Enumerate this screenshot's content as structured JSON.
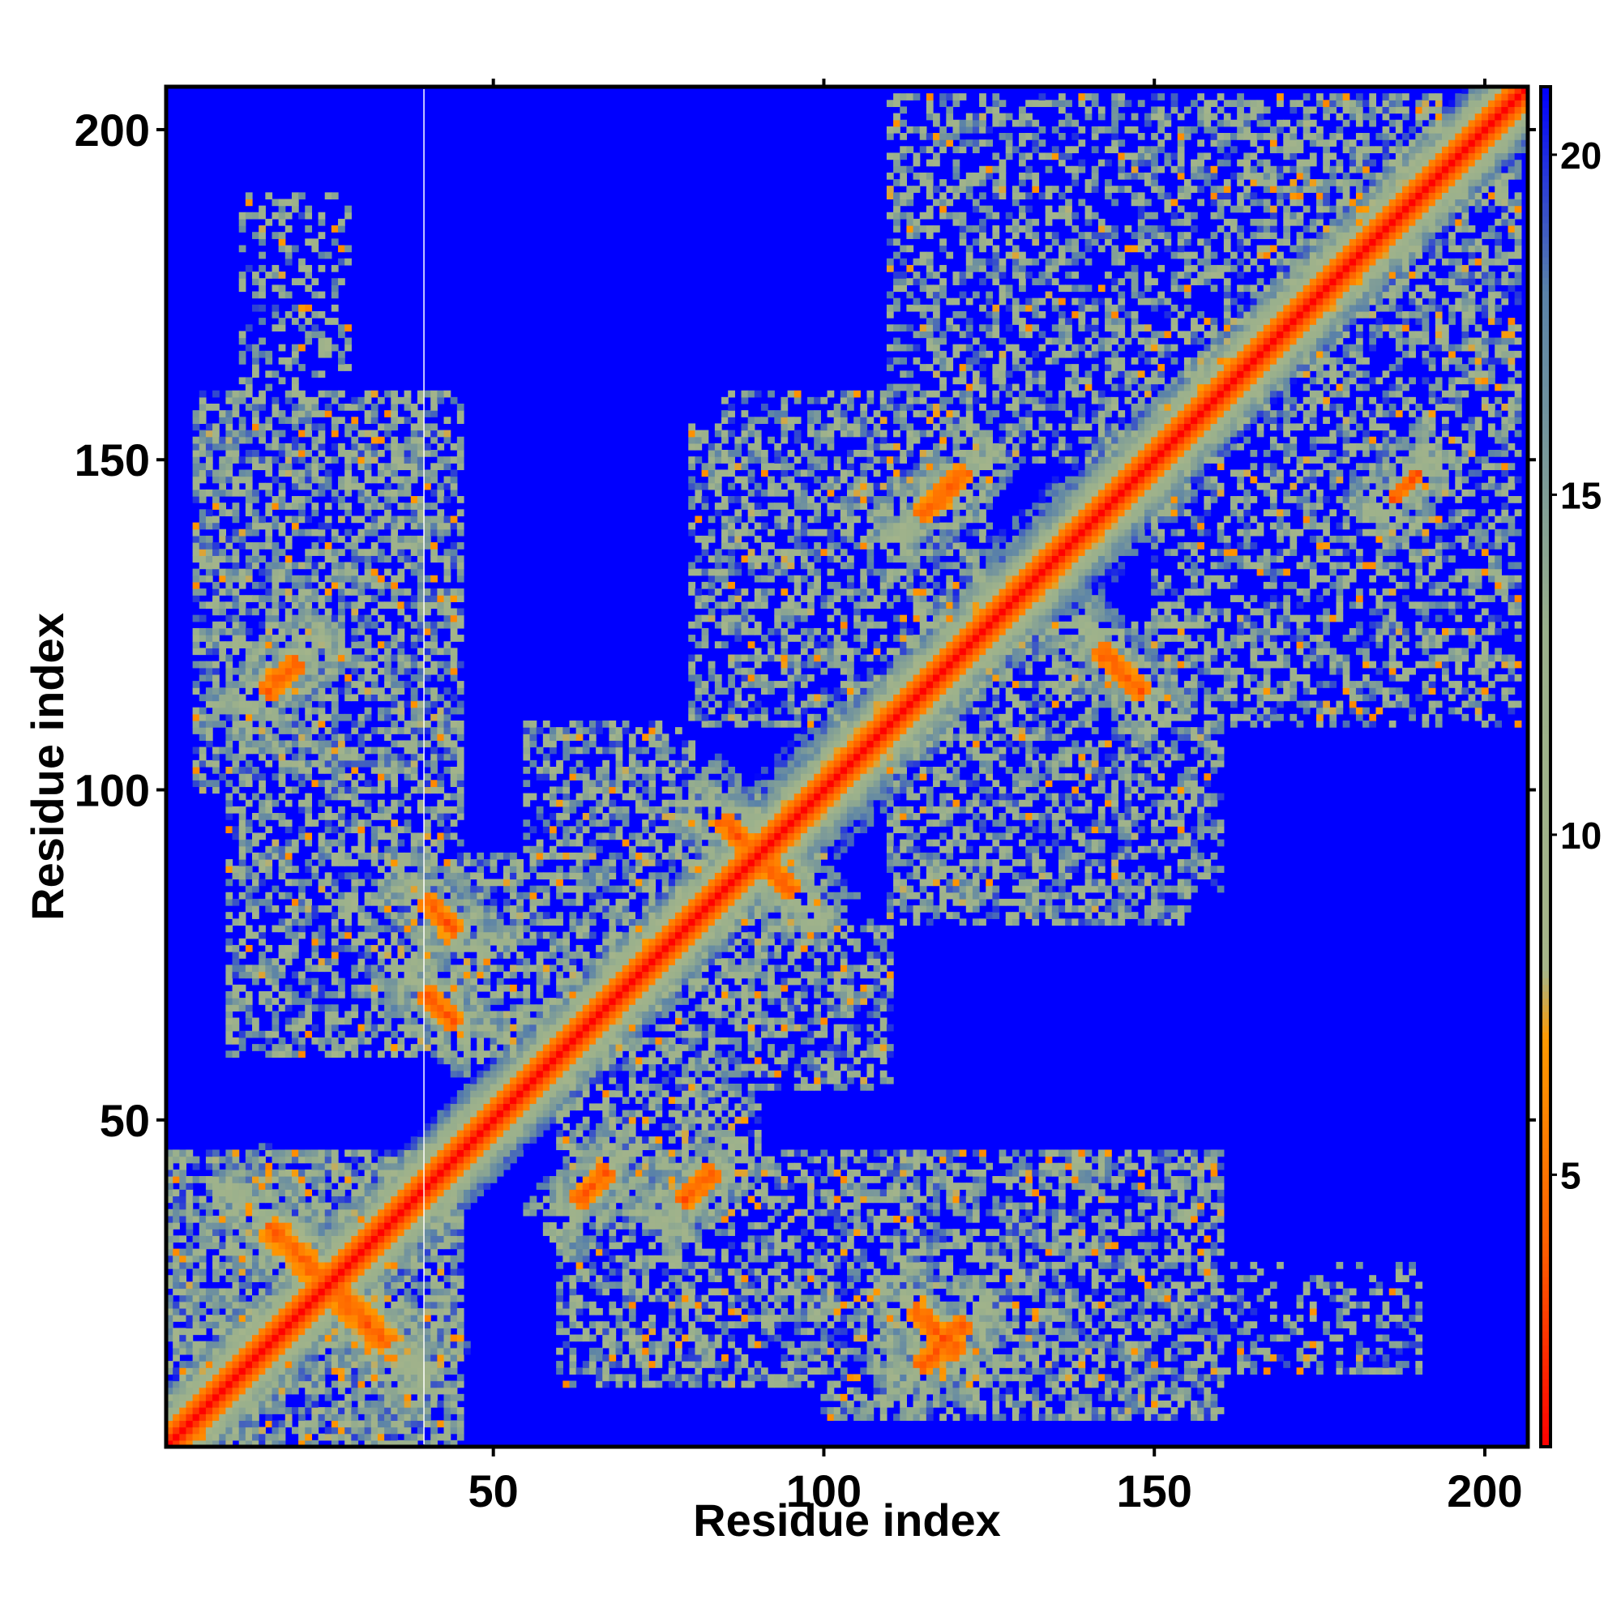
{
  "chart_data": {
    "type": "heatmap",
    "title": "",
    "xlabel": "Residue index",
    "ylabel": "Residue index",
    "xlim": [
      1,
      206
    ],
    "ylim": [
      1,
      206
    ],
    "x_ticks": [
      50,
      100,
      150,
      200
    ],
    "y_ticks": [
      50,
      100,
      150,
      200
    ],
    "x_tick_labels": [
      "50",
      "100",
      "150",
      "200"
    ],
    "y_tick_labels": [
      "50",
      "100",
      "150",
      "200"
    ],
    "n_residues": 206,
    "background_value": 21,
    "colorbar": {
      "range": [
        1,
        21
      ],
      "ticks": [
        5,
        10,
        15,
        20
      ],
      "tick_labels": [
        "5",
        "10",
        "15",
        "20"
      ],
      "stops": [
        {
          "value": 1,
          "color": "#ff0000"
        },
        {
          "value": 4,
          "color": "#ff6000"
        },
        {
          "value": 7,
          "color": "#ff9900"
        },
        {
          "value": 8,
          "color": "#a6b58a"
        },
        {
          "value": 13,
          "color": "#9ab08c"
        },
        {
          "value": 18,
          "color": "#5a82a8"
        },
        {
          "value": 21,
          "color": "#0000ff"
        }
      ]
    },
    "diagonal": {
      "halfwidth": 3,
      "shoulder": 9
    },
    "contact_bands": [
      {
        "center": [
          25,
          25
        ],
        "along": "anti",
        "length": 26,
        "width": 2.2,
        "halo": 9
      },
      {
        "center": [
          27,
          27
        ],
        "along": "diag",
        "length": 22,
        "width": 1.8,
        "halo": 8
      },
      {
        "center": [
          65,
          40
        ],
        "along": "diag",
        "length": 8,
        "width": 1.6,
        "halo": 6
      },
      {
        "center": [
          81,
          40
        ],
        "along": "diag",
        "length": 8,
        "width": 1.6,
        "halo": 6
      },
      {
        "center": [
          42,
          67
        ],
        "along": "anti",
        "length": 8,
        "width": 1.6,
        "halo": 6
      },
      {
        "center": [
          42,
          81
        ],
        "along": "anti",
        "length": 8,
        "width": 1.6,
        "halo": 6
      },
      {
        "center": [
          117,
          18
        ],
        "along": "anti",
        "length": 10,
        "width": 1.6,
        "halo": 6
      },
      {
        "center": [
          18,
          117
        ],
        "along": "diag",
        "length": 8,
        "width": 1.6,
        "halo": 6
      },
      {
        "center": [
          90,
          90
        ],
        "along": "anti",
        "length": 16,
        "width": 1.8,
        "halo": 7
      },
      {
        "center": [
          102,
          102
        ],
        "along": "diag",
        "length": 26,
        "width": 3.0,
        "halo": 9
      },
      {
        "center": [
          136,
          136
        ],
        "along": "diag",
        "length": 24,
        "width": 3.0,
        "halo": 9
      },
      {
        "center": [
          118,
          145
        ],
        "along": "diag",
        "length": 10,
        "width": 1.5,
        "halo": 6
      },
      {
        "center": [
          145,
          118
        ],
        "along": "anti",
        "length": 10,
        "width": 1.5,
        "halo": 6
      },
      {
        "center": [
          118,
          16
        ],
        "along": "diag",
        "length": 10,
        "width": 1.5,
        "halo": 6
      },
      {
        "center": [
          188,
          146
        ],
        "along": "diag",
        "length": 6,
        "width": 1.4,
        "halo": 6
      }
    ],
    "contact_regions": [
      {
        "x": [
          1,
          45
        ],
        "y": [
          1,
          45
        ],
        "density": 0.75
      },
      {
        "x": [
          5,
          45
        ],
        "y": [
          100,
          160
        ],
        "density": 0.6
      },
      {
        "x": [
          10,
          45
        ],
        "y": [
          65,
          100
        ],
        "density": 0.55
      },
      {
        "x": [
          12,
          28
        ],
        "y": [
          160,
          190
        ],
        "density": 0.3
      },
      {
        "x": [
          60,
          160
        ],
        "y": [
          10,
          45
        ],
        "density": 0.55
      },
      {
        "x": [
          60,
          90
        ],
        "y": [
          35,
          60
        ],
        "density": 0.6
      },
      {
        "x": [
          55,
          75
        ],
        "y": [
          85,
          110
        ],
        "density": 0.55
      },
      {
        "x": [
          60,
          100
        ],
        "y": [
          60,
          90
        ],
        "density": 0.6
      },
      {
        "x": [
          85,
          110
        ],
        "y": [
          65,
          80
        ],
        "density": 0.5
      },
      {
        "x": [
          80,
          125
        ],
        "y": [
          110,
          155
        ],
        "density": 0.55
      },
      {
        "x": [
          115,
          160
        ],
        "y": [
          85,
          125
        ],
        "density": 0.55
      },
      {
        "x": [
          140,
          195
        ],
        "y": [
          110,
          125
        ],
        "density": 0.4
      },
      {
        "x": [
          150,
          205
        ],
        "y": [
          125,
          160
        ],
        "density": 0.45
      },
      {
        "x": [
          110,
          150
        ],
        "y": [
          160,
          205
        ],
        "density": 0.45
      },
      {
        "x": [
          150,
          205
        ],
        "y": [
          160,
          205
        ],
        "density": 0.5
      },
      {
        "x": [
          165,
          205
        ],
        "y": [
          185,
          205
        ],
        "density": 0.6
      }
    ]
  }
}
